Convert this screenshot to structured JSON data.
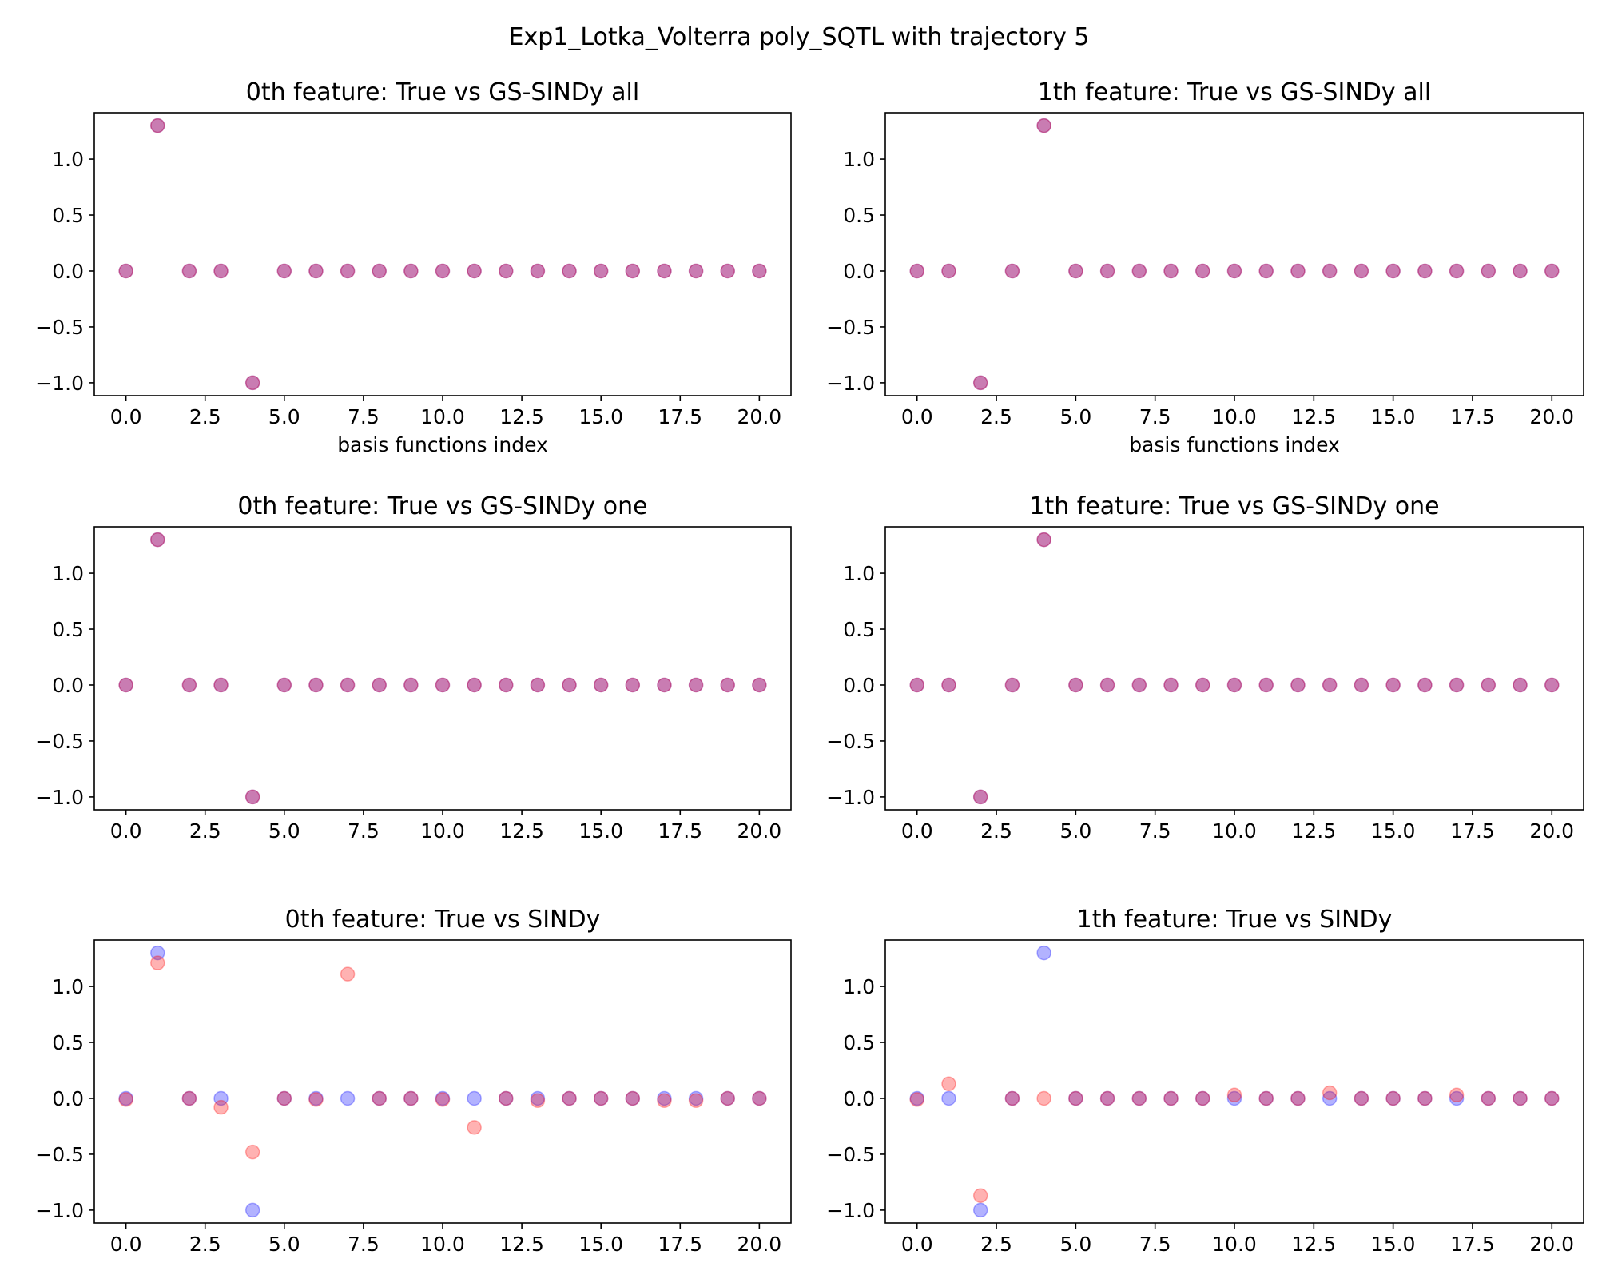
{
  "title": "Exp1_Lotka_Volterra poly_SQTL with trajectory 5",
  "colors": {
    "true": "#0000ff",
    "estimate": "#ff0000",
    "marker_alpha": 0.3
  },
  "chart_data": [
    {
      "type": "scatter",
      "title": "0th feature: True vs GS-SINDy all",
      "xlabel": "basis functions index",
      "ylabel": "",
      "xlim": [
        -1,
        21
      ],
      "ylim": [
        -1.115,
        1.415
      ],
      "xticks": [
        "0.0",
        "2.5",
        "5.0",
        "7.5",
        "10.0",
        "12.5",
        "15.0",
        "17.5",
        "20.0"
      ],
      "yticks": [
        "1.0",
        "0.5",
        "0.0",
        "−0.5",
        "−1.0"
      ],
      "x": [
        0,
        1,
        2,
        3,
        4,
        5,
        6,
        7,
        8,
        9,
        10,
        11,
        12,
        13,
        14,
        15,
        16,
        17,
        18,
        19,
        20
      ],
      "series": [
        {
          "role": "true",
          "values": [
            0,
            1.3,
            0,
            0,
            -1,
            0,
            0,
            0,
            0,
            0,
            0,
            0,
            0,
            0,
            0,
            0,
            0,
            0,
            0,
            0,
            0
          ]
        },
        {
          "role": "estimate",
          "values": [
            0,
            1.3,
            0,
            0,
            -1,
            0,
            0,
            0,
            0,
            0,
            0,
            0,
            0,
            0,
            0,
            0,
            0,
            0,
            0,
            0,
            0
          ]
        }
      ]
    },
    {
      "type": "scatter",
      "title": "1th feature: True vs GS-SINDy all",
      "xlabel": "basis functions index",
      "ylabel": "",
      "xlim": [
        -1,
        21
      ],
      "ylim": [
        -1.115,
        1.415
      ],
      "xticks": [
        "0.0",
        "2.5",
        "5.0",
        "7.5",
        "10.0",
        "12.5",
        "15.0",
        "17.5",
        "20.0"
      ],
      "yticks": [
        "1.0",
        "0.5",
        "0.0",
        "−0.5",
        "−1.0"
      ],
      "x": [
        0,
        1,
        2,
        3,
        4,
        5,
        6,
        7,
        8,
        9,
        10,
        11,
        12,
        13,
        14,
        15,
        16,
        17,
        18,
        19,
        20
      ],
      "series": [
        {
          "role": "true",
          "values": [
            0,
            0,
            -1,
            0,
            1.3,
            0,
            0,
            0,
            0,
            0,
            0,
            0,
            0,
            0,
            0,
            0,
            0,
            0,
            0,
            0,
            0
          ]
        },
        {
          "role": "estimate",
          "values": [
            0,
            0,
            -1,
            0,
            1.3,
            0,
            0,
            0,
            0,
            0,
            0,
            0,
            0,
            0,
            0,
            0,
            0,
            0,
            0,
            0,
            0
          ]
        }
      ]
    },
    {
      "type": "scatter",
      "title": "0th feature: True vs GS-SINDy one",
      "xlabel": "",
      "ylabel": "",
      "xlim": [
        -1,
        21
      ],
      "ylim": [
        -1.115,
        1.415
      ],
      "xticks": [
        "0.0",
        "2.5",
        "5.0",
        "7.5",
        "10.0",
        "12.5",
        "15.0",
        "17.5",
        "20.0"
      ],
      "yticks": [
        "1.0",
        "0.5",
        "0.0",
        "−0.5",
        "−1.0"
      ],
      "x": [
        0,
        1,
        2,
        3,
        4,
        5,
        6,
        7,
        8,
        9,
        10,
        11,
        12,
        13,
        14,
        15,
        16,
        17,
        18,
        19,
        20
      ],
      "series": [
        {
          "role": "true",
          "values": [
            0,
            1.3,
            0,
            0,
            -1,
            0,
            0,
            0,
            0,
            0,
            0,
            0,
            0,
            0,
            0,
            0,
            0,
            0,
            0,
            0,
            0
          ]
        },
        {
          "role": "estimate",
          "values": [
            0,
            1.3,
            0,
            0,
            -1,
            0,
            0,
            0,
            0,
            0,
            0,
            0,
            0,
            0,
            0,
            0,
            0,
            0,
            0,
            0,
            0
          ]
        }
      ]
    },
    {
      "type": "scatter",
      "title": "1th feature: True vs GS-SINDy one",
      "xlabel": "",
      "ylabel": "",
      "xlim": [
        -1,
        21
      ],
      "ylim": [
        -1.115,
        1.415
      ],
      "xticks": [
        "0.0",
        "2.5",
        "5.0",
        "7.5",
        "10.0",
        "12.5",
        "15.0",
        "17.5",
        "20.0"
      ],
      "yticks": [
        "1.0",
        "0.5",
        "0.0",
        "−0.5",
        "−1.0"
      ],
      "x": [
        0,
        1,
        2,
        3,
        4,
        5,
        6,
        7,
        8,
        9,
        10,
        11,
        12,
        13,
        14,
        15,
        16,
        17,
        18,
        19,
        20
      ],
      "series": [
        {
          "role": "true",
          "values": [
            0,
            0,
            -1,
            0,
            1.3,
            0,
            0,
            0,
            0,
            0,
            0,
            0,
            0,
            0,
            0,
            0,
            0,
            0,
            0,
            0,
            0
          ]
        },
        {
          "role": "estimate",
          "values": [
            0,
            0,
            -1,
            0,
            1.3,
            0,
            0,
            0,
            0,
            0,
            0,
            0,
            0,
            0,
            0,
            0,
            0,
            0,
            0,
            0,
            0
          ]
        }
      ]
    },
    {
      "type": "scatter",
      "title": "0th feature: True vs SINDy",
      "xlabel": "",
      "ylabel": "",
      "xlim": [
        -1,
        21
      ],
      "ylim": [
        -1.115,
        1.415
      ],
      "xticks": [
        "0.0",
        "2.5",
        "5.0",
        "7.5",
        "10.0",
        "12.5",
        "15.0",
        "17.5",
        "20.0"
      ],
      "yticks": [
        "1.0",
        "0.5",
        "0.0",
        "−0.5",
        "−1.0"
      ],
      "x": [
        0,
        1,
        2,
        3,
        4,
        5,
        6,
        7,
        8,
        9,
        10,
        11,
        12,
        13,
        14,
        15,
        16,
        17,
        18,
        19,
        20
      ],
      "series": [
        {
          "role": "true",
          "values": [
            0,
            1.3,
            0,
            0,
            -1,
            0,
            0,
            0,
            0,
            0,
            0,
            0,
            0,
            0,
            0,
            0,
            0,
            0,
            0,
            0,
            0
          ]
        },
        {
          "role": "estimate",
          "values": [
            -0.01,
            1.21,
            0,
            -0.08,
            -0.48,
            0,
            -0.01,
            1.11,
            0,
            0,
            -0.01,
            -0.26,
            0,
            -0.02,
            0,
            0,
            0,
            -0.02,
            -0.02,
            0,
            0
          ]
        }
      ]
    },
    {
      "type": "scatter",
      "title": "1th feature: True vs SINDy",
      "xlabel": "",
      "ylabel": "",
      "xlim": [
        -1,
        21
      ],
      "ylim": [
        -1.115,
        1.415
      ],
      "xticks": [
        "0.0",
        "2.5",
        "5.0",
        "7.5",
        "10.0",
        "12.5",
        "15.0",
        "17.5",
        "20.0"
      ],
      "yticks": [
        "1.0",
        "0.5",
        "0.0",
        "−0.5",
        "−1.0"
      ],
      "x": [
        0,
        1,
        2,
        3,
        4,
        5,
        6,
        7,
        8,
        9,
        10,
        11,
        12,
        13,
        14,
        15,
        16,
        17,
        18,
        19,
        20
      ],
      "series": [
        {
          "role": "true",
          "values": [
            0,
            0,
            -1,
            0,
            1.3,
            0,
            0,
            0,
            0,
            0,
            0,
            0,
            0,
            0,
            0,
            0,
            0,
            0,
            0,
            0,
            0
          ]
        },
        {
          "role": "estimate",
          "values": [
            -0.01,
            0.13,
            -0.87,
            0,
            0,
            0,
            0,
            0,
            0,
            0,
            0.03,
            0,
            0,
            0.05,
            0,
            0,
            0,
            0.03,
            0,
            0,
            0
          ]
        }
      ]
    }
  ]
}
